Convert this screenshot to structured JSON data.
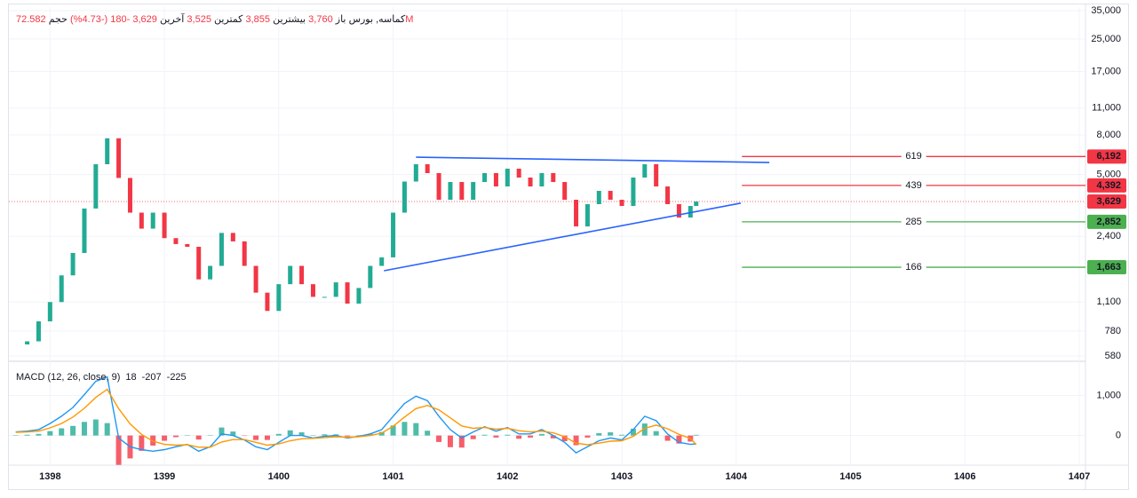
{
  "chart_data": {
    "type": "candlestick",
    "header": {
      "symbol": "کماسه, بورس",
      "fields": [
        {
          "label": "باز",
          "value": "3,760"
        },
        {
          "label": "بیشترین",
          "value": "3,855"
        },
        {
          "label": "کمترین",
          "value": "3,525"
        },
        {
          "label": "آخرین",
          "value": "3,629"
        },
        {
          "label": "",
          "value": "-180 (-4.73%)"
        },
        {
          "label": "حجم",
          "value": "72.582M"
        }
      ]
    },
    "x": [
      1397.7,
      1397.8,
      1397.9,
      1398,
      1398.1,
      1398.2,
      1398.3,
      1398.4,
      1398.5,
      1398.6,
      1398.7,
      1398.8,
      1398.9,
      1399,
      1399.1,
      1399.2,
      1399.3,
      1399.4,
      1399.5,
      1399.6,
      1399.7,
      1399.8,
      1399.9,
      1400,
      1400.1,
      1400.2,
      1400.3,
      1400.4,
      1400.5,
      1400.6,
      1400.7,
      1400.8,
      1400.9,
      1401,
      1401.1,
      1401.2,
      1401.3,
      1401.4,
      1401.5,
      1401.6,
      1401.7,
      1401.8,
      1401.9,
      1402,
      1402.1,
      1402.2,
      1402.3,
      1402.4,
      1402.5,
      1402.6,
      1402.7,
      1402.8,
      1402.9,
      1403,
      1403.1,
      1403.2,
      1403.3,
      1403.4,
      1403.5,
      1403.6,
      1403.65
    ],
    "close": [
      665,
      690,
      875,
      1100,
      1510,
      1970,
      3340,
      5650,
      7690,
      4800,
      3180,
      2630,
      3180,
      2350,
      2190,
      2120,
      1440,
      1690,
      2500,
      2260,
      1690,
      1230,
      990,
      1360,
      1690,
      1360,
      1170,
      1170,
      1390,
      1080,
      1300,
      1690,
      1870,
      3180,
      4600,
      5650,
      5085,
      3706,
      4575,
      3706,
      4575,
      5085,
      4340,
      5360,
      4823,
      4340,
      5085,
      4575,
      3706,
      2700,
      3517,
      4118,
      3706,
      3442,
      4823,
      5650,
      4340,
      3517,
      3000,
      3442,
      3629
    ],
    "up_color": "#22ab94",
    "down_color": "#f23645",
    "xlim": [
      1397.64,
      1407.0
    ],
    "xticks": [
      1398,
      1399,
      1400,
      1401,
      1402,
      1403,
      1404,
      1405,
      1406,
      1407
    ],
    "ylim": [
      556,
      36500
    ],
    "log_y": true,
    "yticks": [
      {
        "value": 35000,
        "label": "35,000"
      },
      {
        "value": 25000,
        "label": "25,000"
      },
      {
        "value": 17000,
        "label": "17,000"
      },
      {
        "value": 11000,
        "label": "11,000"
      },
      {
        "value": 8000,
        "label": "8,000"
      },
      {
        "value": 5000,
        "label": "5,000"
      },
      {
        "value": 2400,
        "label": "2,400"
      },
      {
        "value": 1100,
        "label": "1,100"
      },
      780,
      580
    ],
    "grid": true,
    "last_price": {
      "value": 3629,
      "label": "3,629",
      "color": "#f23645"
    },
    "levels": [
      {
        "value": 6192,
        "label": "6,192",
        "tag": "619",
        "color": "#f23645"
      },
      {
        "value": 4392,
        "label": "4,392",
        "tag": "439",
        "color": "#f23645"
      },
      {
        "value": 2852,
        "label": "2,852",
        "tag": "285",
        "color": "#4caf50"
      },
      {
        "value": 1663,
        "label": "1,663",
        "tag": "166",
        "color": "#4caf50"
      }
    ],
    "level_start": 1404.05,
    "trendlines": [
      {
        "x": [
          1401.2,
          1404.29
        ],
        "y": [
          6143,
          5770
        ],
        "color": "#2962ff"
      },
      {
        "x": [
          1400.92,
          1404.04
        ],
        "y": [
          1595,
          3560
        ],
        "color": "#2962ff"
      }
    ],
    "macd": {
      "title": "MACD (12, 26, close, 9)",
      "current": [
        18,
        -207,
        -225
      ],
      "current_colors": [
        "#22ab94",
        "#2196f3",
        "#ff9800"
      ],
      "histogram": [
        10,
        20,
        40,
        110,
        180,
        240,
        340,
        400,
        310,
        -730,
        -570,
        -380,
        -250,
        -130,
        -40,
        10,
        -100,
        10,
        200,
        100,
        -10,
        -110,
        -110,
        40,
        130,
        80,
        10,
        30,
        30,
        -20,
        10,
        40,
        90,
        250,
        340,
        310,
        120,
        -160,
        -290,
        -300,
        -90,
        20,
        -50,
        20,
        -80,
        -50,
        40,
        -70,
        -140,
        -240,
        -50,
        60,
        80,
        20,
        170,
        300,
        110,
        -130,
        -200,
        -150,
        18
      ],
      "macd": [
        90,
        110,
        150,
        300,
        480,
        700,
        1020,
        1350,
        1460,
        -60,
        -280,
        -350,
        -390,
        -350,
        -280,
        -220,
        -390,
        -280,
        40,
        0,
        -110,
        -280,
        -350,
        -170,
        0,
        0,
        -60,
        -20,
        0,
        -60,
        -20,
        40,
        150,
        480,
        800,
        980,
        870,
        480,
        150,
        -60,
        90,
        220,
        110,
        200,
        40,
        40,
        150,
        0,
        -170,
        -430,
        -280,
        -130,
        -60,
        -110,
        150,
        480,
        370,
        40,
        -170,
        -220,
        -207
      ],
      "signal": [
        80,
        90,
        110,
        190,
        300,
        460,
        680,
        950,
        1150,
        670,
        290,
        30,
        -140,
        -220,
        -240,
        -230,
        -290,
        -290,
        -160,
        -100,
        -100,
        -170,
        -240,
        -210,
        -130,
        -80,
        -70,
        -50,
        -30,
        -40,
        -30,
        0,
        60,
        230,
        460,
        670,
        750,
        640,
        440,
        240,
        180,
        200,
        160,
        180,
        120,
        90,
        110,
        70,
        -30,
        -190,
        -230,
        -190,
        -140,
        -130,
        -20,
        180,
        260,
        170,
        30,
        -70,
        -225
      ],
      "hist_up_color": "#22ab94",
      "hist_down_color": "#f23645",
      "macd_color": "#2196f3",
      "signal_color": "#ff9800",
      "ylim": [
        -826,
        1783
      ],
      "yticks": [
        {
          "value": 1000,
          "label": "1,000"
        },
        0
      ]
    }
  }
}
